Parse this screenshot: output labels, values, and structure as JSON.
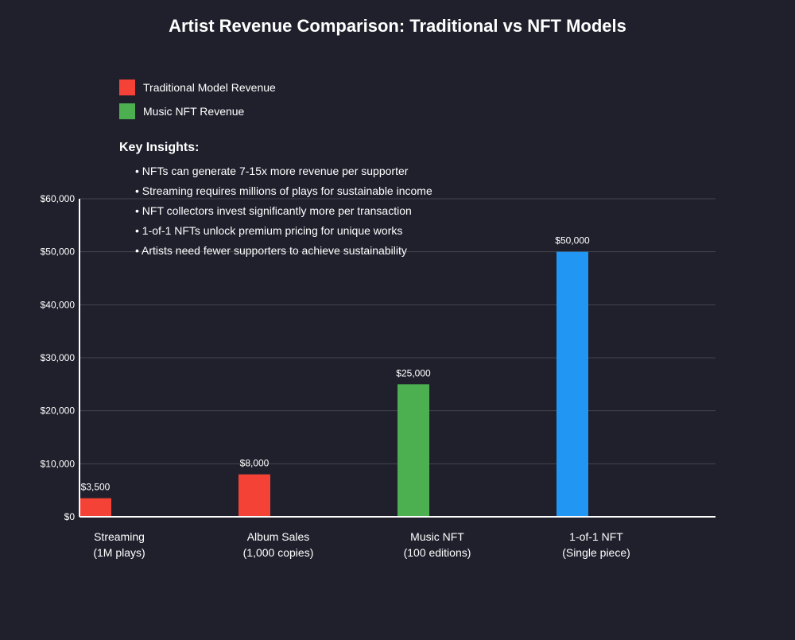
{
  "chart_data": {
    "type": "bar",
    "title": "Artist Revenue Comparison: Traditional vs NFT Models",
    "xlabel": "",
    "ylabel": "",
    "ylim": [
      0,
      60000
    ],
    "grid": true,
    "yticks": [
      0,
      10000,
      20000,
      30000,
      40000,
      50000,
      60000
    ],
    "ytick_labels": [
      "$0",
      "$10,000",
      "$20,000",
      "$30,000",
      "$40,000",
      "$50,000",
      "$60,000"
    ],
    "categories": [
      {
        "line1": "Streaming",
        "line2": "(1M plays)"
      },
      {
        "line1": "Album Sales",
        "line2": "(1,000 copies)"
      },
      {
        "line1": "Music NFT",
        "line2": "(100 editions)"
      },
      {
        "line1": "1-of-1 NFT",
        "line2": "(Single piece)"
      }
    ],
    "values": [
      3500,
      8000,
      25000,
      50000
    ],
    "value_labels": [
      "$3,500",
      "$8,000",
      "$25,000",
      "$50,000"
    ],
    "bar_colors": [
      "#f44336",
      "#f44336",
      "#4caf50",
      "#2196f3"
    ],
    "legend": [
      {
        "label": "Traditional Model Revenue",
        "color": "#f44336"
      },
      {
        "label": "Music NFT Revenue",
        "color": "#4caf50"
      }
    ],
    "insights": {
      "heading": "Key Insights:",
      "items": [
        "• NFTs can generate 7-15x more revenue per supporter",
        "• Streaming requires millions of plays for sustainable income",
        "• NFT collectors invest significantly more per transaction",
        "• 1-of-1 NFTs unlock premium pricing for unique works",
        "• Artists need fewer supporters to achieve sustainability"
      ]
    }
  }
}
